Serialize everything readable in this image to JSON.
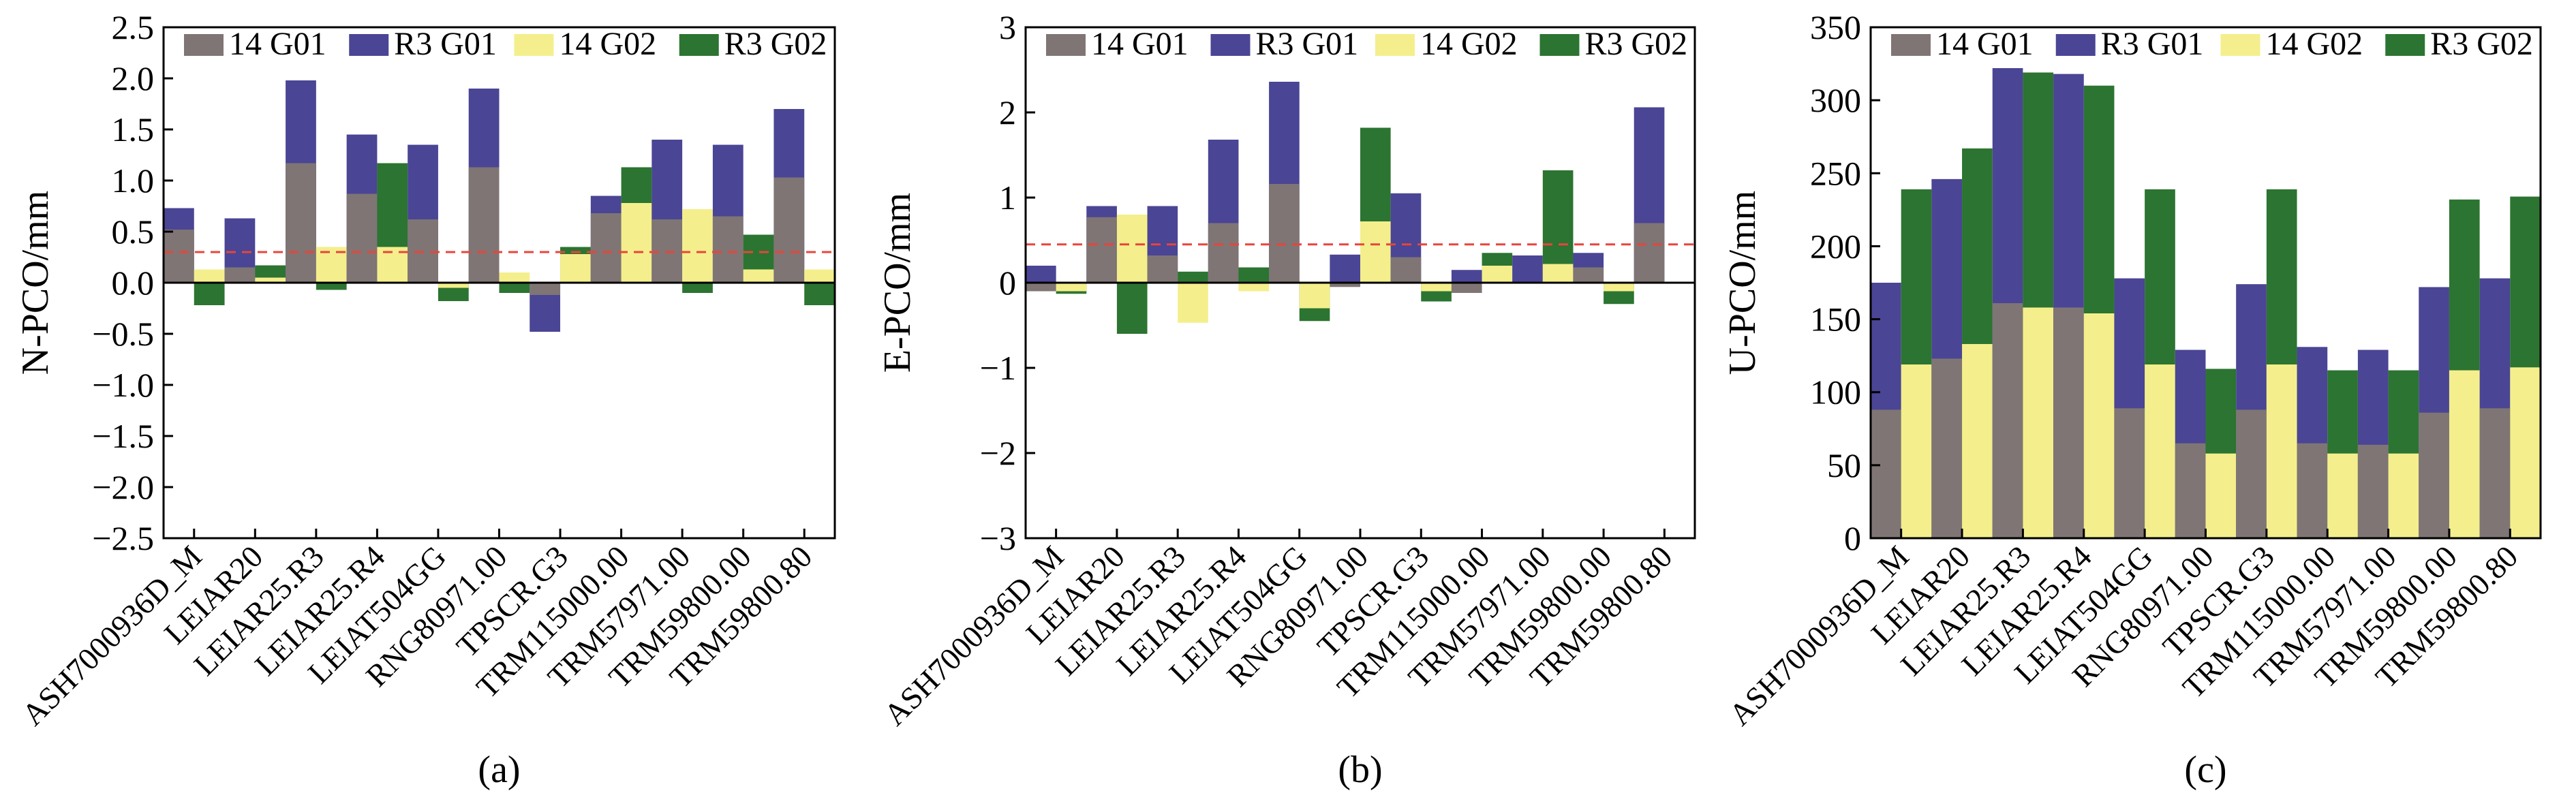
{
  "colors": {
    "14 G01": "#7f7574",
    "R3 G01": "#4a4594",
    "14 G02": "#f4ef8c",
    "R3 G02": "#2c7431",
    "reference_line": "#e8453c"
  },
  "chart_data": [
    {
      "type": "bar",
      "panel_label": "(a)",
      "ylabel": "N-PCO/mm",
      "ylim": [
        -2.5,
        2.5
      ],
      "yticks": [
        2.5,
        2.0,
        1.5,
        1.0,
        0.5,
        0.0,
        -0.5,
        -1.0,
        -1.5,
        -2.0,
        -2.5
      ],
      "ytick_labels": [
        "2.5",
        "2.0",
        "1.5",
        "1.0",
        "0.5",
        "0.0",
        "−0.5",
        "−1.0",
        "−1.5",
        "−2.0",
        "−2.5"
      ],
      "reference_line": 0.3,
      "categories": [
        "ASH7000936D_M",
        "LEIAR20",
        "LEIAR25.R3",
        "LEIAR25.R4",
        "LEIAT504GG",
        "RNG80971.00",
        "TPSCR.G3",
        "TRM115000.00",
        "TRM57971.00",
        "TRM59800.00",
        "TRM59800.80"
      ],
      "legend": [
        "14 G01",
        "R3 G01",
        "14 G02",
        "R3 G02"
      ],
      "series": [
        {
          "name": "14 G01",
          "values": [
            0.52,
            0.15,
            1.17,
            0.87,
            0.62,
            1.13,
            -0.12,
            0.68,
            0.62,
            0.65,
            1.03
          ]
        },
        {
          "name": "R3 G01",
          "values": [
            0.73,
            0.63,
            1.98,
            1.45,
            1.35,
            1.9,
            -0.48,
            0.85,
            1.4,
            1.35,
            1.7
          ]
        },
        {
          "name": "14 G02",
          "values": [
            0.13,
            0.05,
            0.35,
            0.35,
            -0.05,
            0.1,
            0.28,
            0.78,
            0.72,
            0.13,
            0.13
          ]
        },
        {
          "name": "R3 G02",
          "values": [
            -0.22,
            0.17,
            -0.07,
            1.17,
            -0.18,
            -0.1,
            0.35,
            1.13,
            -0.1,
            0.47,
            -0.22
          ]
        }
      ]
    },
    {
      "type": "bar",
      "panel_label": "(b)",
      "ylabel": "E-PCO/mm",
      "ylim": [
        -3,
        3
      ],
      "yticks": [
        3,
        2,
        1,
        0,
        -1,
        -2,
        -3
      ],
      "ytick_labels": [
        "3",
        "2",
        "1",
        "0",
        "−1",
        "−2",
        "−3"
      ],
      "reference_line": 0.45,
      "categories": [
        "ASH7000936D_M",
        "LEIAR20",
        "LEIAR25.R3",
        "LEIAR25.R4",
        "LEIAT504GG",
        "RNG80971.00",
        "TPSCR.G3",
        "TRM115000.00",
        "TRM57971.00",
        "TRM59800.00",
        "TRM59800.80"
      ],
      "legend": [
        "14 G01",
        "R3 G01",
        "14 G02",
        "R3 G02"
      ],
      "series": [
        {
          "name": "14 G01",
          "values": [
            -0.1,
            0.77,
            0.32,
            0.7,
            1.16,
            -0.05,
            0.3,
            -0.12,
            0.0,
            0.18,
            0.7
          ]
        },
        {
          "name": "R3 G01",
          "values": [
            0.2,
            0.9,
            0.9,
            1.68,
            2.36,
            0.33,
            1.05,
            0.15,
            0.32,
            0.35,
            2.06
          ]
        },
        {
          "name": "14 G02",
          "values": [
            -0.1,
            0.8,
            -0.47,
            -0.1,
            -0.3,
            0.72,
            -0.1,
            0.2,
            0.22,
            -0.1,
            0.0
          ]
        },
        {
          "name": "R3 G02",
          "values": [
            -0.13,
            -0.6,
            0.13,
            0.18,
            -0.45,
            1.82,
            -0.22,
            0.35,
            1.32,
            -0.25,
            0.0
          ]
        }
      ]
    },
    {
      "type": "bar",
      "panel_label": "(c)",
      "ylabel": "U-PCO/mm",
      "ylim": [
        0,
        350
      ],
      "yticks": [
        350,
        300,
        250,
        200,
        150,
        100,
        50,
        0
      ],
      "ytick_labels": [
        "350",
        "300",
        "250",
        "200",
        "150",
        "100",
        "50",
        "0"
      ],
      "reference_line": null,
      "categories": [
        "ASH7000936D_M",
        "LEIAR20",
        "LEIAR25.R3",
        "LEIAR25.R4",
        "LEIAT504GG",
        "RNG80971.00",
        "TPSCR.G3",
        "TRM115000.00",
        "TRM57971.00",
        "TRM59800.00",
        "TRM59800.80"
      ],
      "legend": [
        "14 G01",
        "R3 G01",
        "14 G02",
        "R3 G02"
      ],
      "series": [
        {
          "name": "14 G01",
          "values": [
            88,
            123,
            161,
            158,
            89,
            65,
            88,
            65,
            64,
            86,
            89
          ]
        },
        {
          "name": "R3 G01",
          "values": [
            175,
            246,
            322,
            318,
            178,
            129,
            174,
            131,
            129,
            172,
            178
          ]
        },
        {
          "name": "14 G02",
          "values": [
            119,
            133,
            158,
            154,
            119,
            58,
            119,
            58,
            58,
            115,
            117
          ]
        },
        {
          "name": "R3 G02",
          "values": [
            239,
            267,
            319,
            310,
            239,
            116,
            239,
            115,
            115,
            232,
            234
          ]
        }
      ]
    }
  ]
}
